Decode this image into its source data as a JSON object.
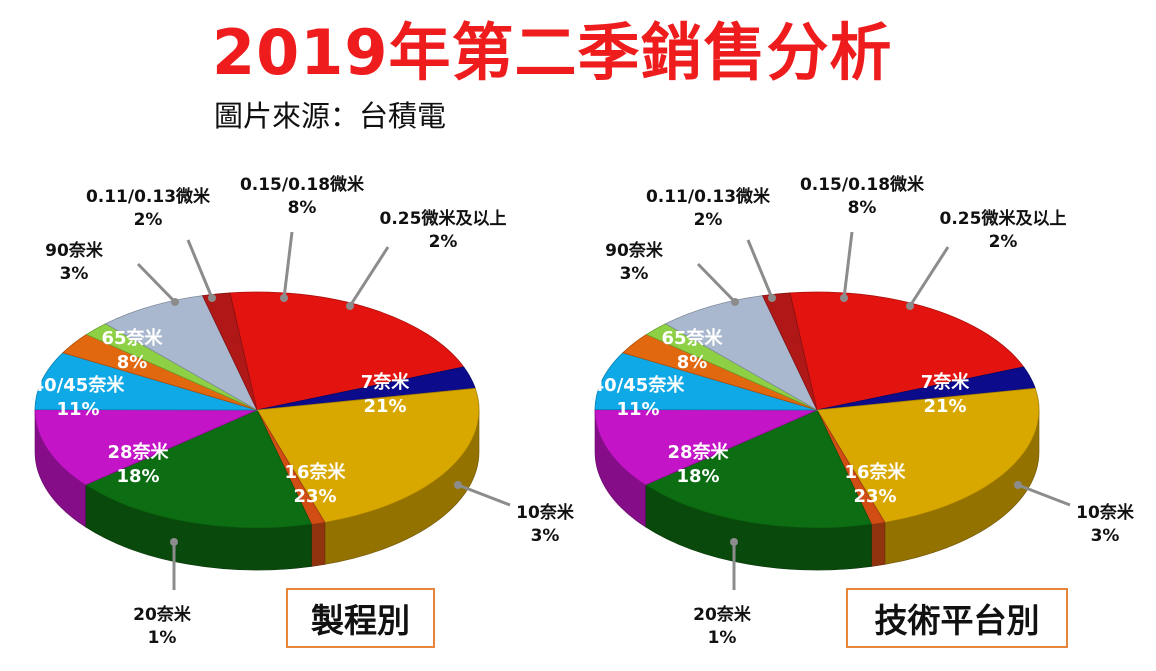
{
  "title": "2019年第二季銷售分析",
  "subtitle": "圖片來源：台積電",
  "chart_data": [
    {
      "type": "pie",
      "title": "製程別",
      "slices": [
        {
          "label": "7奈米",
          "value": 21,
          "pct": "21%",
          "color": "#e3140f",
          "label_side": "inside"
        },
        {
          "label": "10奈米",
          "value": 3,
          "pct": "3%",
          "color": "#0b0b8c",
          "label_side": "outside"
        },
        {
          "label": "16奈米",
          "value": 23,
          "pct": "23%",
          "color": "#d9a800",
          "label_side": "inside"
        },
        {
          "label": "20奈米",
          "value": 1,
          "pct": "1%",
          "color": "#d24d14",
          "label_side": "outside"
        },
        {
          "label": "28奈米",
          "value": 18,
          "pct": "18%",
          "color": "#0d6d12",
          "label_side": "inside"
        },
        {
          "label": "40/45奈米",
          "value": 11,
          "pct": "11%",
          "color": "#c414c8",
          "label_side": "inside"
        },
        {
          "label": "65奈米",
          "value": 8,
          "pct": "8%",
          "color": "#0fa9e8",
          "label_side": "inside"
        },
        {
          "label": "90奈米",
          "value": 3,
          "pct": "3%",
          "color": "#e2680f",
          "label_side": "outside"
        },
        {
          "label": "0.11/0.13微米",
          "value": 2,
          "pct": "2%",
          "color": "#8ed043",
          "label_side": "outside"
        },
        {
          "label": "0.15/0.18微米",
          "value": 8,
          "pct": "8%",
          "color": "#a9b8cf",
          "label_side": "outside"
        },
        {
          "label": "0.25微米及以上",
          "value": 2,
          "pct": "2%",
          "color": "#b01818",
          "label_side": "outside"
        }
      ]
    },
    {
      "type": "pie",
      "title": "技術平台別",
      "slices": [
        {
          "label": "7奈米",
          "value": 21,
          "pct": "21%",
          "color": "#e3140f",
          "label_side": "inside"
        },
        {
          "label": "10奈米",
          "value": 3,
          "pct": "3%",
          "color": "#0b0b8c",
          "label_side": "outside"
        },
        {
          "label": "16奈米",
          "value": 23,
          "pct": "23%",
          "color": "#d9a800",
          "label_side": "inside"
        },
        {
          "label": "20奈米",
          "value": 1,
          "pct": "1%",
          "color": "#d24d14",
          "label_side": "outside"
        },
        {
          "label": "28奈米",
          "value": 18,
          "pct": "18%",
          "color": "#0d6d12",
          "label_side": "inside"
        },
        {
          "label": "40/45奈米",
          "value": 11,
          "pct": "11%",
          "color": "#c414c8",
          "label_side": "inside"
        },
        {
          "label": "65奈米",
          "value": 8,
          "pct": "8%",
          "color": "#0fa9e8",
          "label_side": "inside"
        },
        {
          "label": "90奈米",
          "value": 3,
          "pct": "3%",
          "color": "#e2680f",
          "label_side": "outside"
        },
        {
          "label": "0.11/0.13微米",
          "value": 2,
          "pct": "2%",
          "color": "#8ed043",
          "label_side": "outside"
        },
        {
          "label": "0.15/0.18微米",
          "value": 8,
          "pct": "8%",
          "color": "#a9b8cf",
          "label_side": "outside"
        },
        {
          "label": "0.25微米及以上",
          "value": 2,
          "pct": "2%",
          "color": "#b01818",
          "label_side": "outside"
        }
      ]
    }
  ]
}
